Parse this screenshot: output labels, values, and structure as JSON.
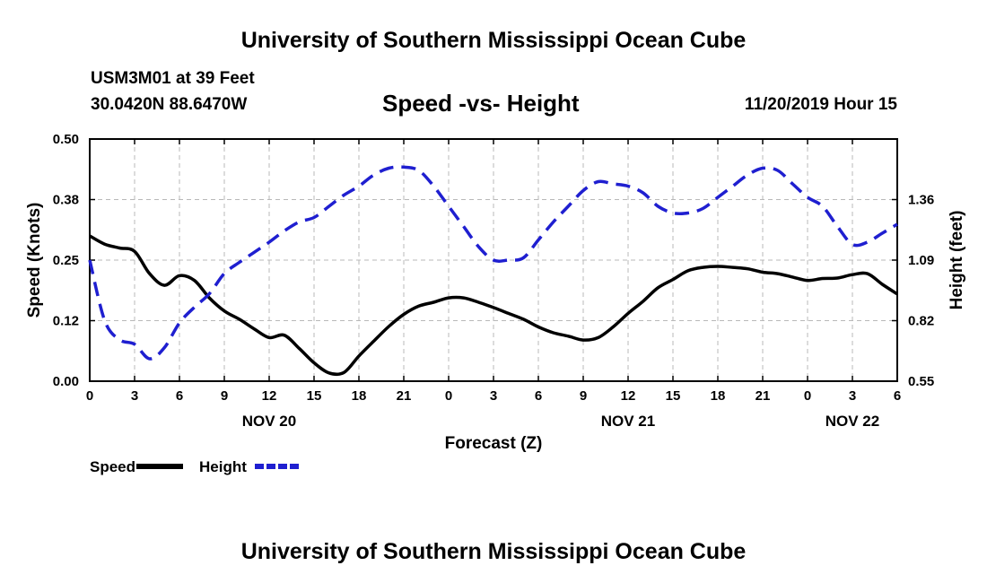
{
  "header": {
    "title": "University of Southern Mississippi Ocean Cube",
    "station": "USM3M01 at 39 Feet",
    "coordinates": "30.0420N 88.6470W",
    "subtitle": "Speed -vs- Height",
    "datetime": "11/20/2019 Hour 15"
  },
  "footer": {
    "title": "University of Southern Mississippi Ocean Cube"
  },
  "colors": {
    "speed": "#000000",
    "height": "#1f1fd0",
    "grid": "#b8b8b8"
  },
  "chart_data": {
    "type": "line",
    "title": "Speed -vs- Height",
    "xlabel": "Forecast (Z)",
    "ylabel": "Speed (Knots)",
    "y2label": "Height (feet)",
    "grid": true,
    "legend_position": "bottom-left",
    "x_range_hours": [
      0,
      54
    ],
    "x_tick_hours": [
      0,
      3,
      6,
      9,
      12,
      15,
      18,
      21,
      24,
      27,
      30,
      33,
      36,
      39,
      42,
      45,
      48,
      51,
      54
    ],
    "x_tick_labels": [
      "0",
      "3",
      "6",
      "9",
      "12",
      "15",
      "18",
      "21",
      "0",
      "3",
      "6",
      "9",
      "12",
      "15",
      "18",
      "21",
      "0",
      "3",
      "6"
    ],
    "date_labels": [
      {
        "hour": 12,
        "label": "NOV 20"
      },
      {
        "hour": 36,
        "label": "NOV 21"
      },
      {
        "hour": 51,
        "label": "NOV 22"
      }
    ],
    "y_left": {
      "range": [
        0.0,
        0.5
      ],
      "ticks": [
        0.0,
        0.125,
        0.25,
        0.375,
        0.5
      ],
      "tick_labels": [
        "0.00",
        "0.12",
        "0.25",
        "0.38",
        "0.50"
      ]
    },
    "y_right": {
      "range": [
        0.55,
        1.63
      ],
      "ticks": [
        0.55,
        0.82,
        1.09,
        1.36
      ],
      "tick_labels": [
        "0.55",
        "0.82",
        "1.09",
        "1.36"
      ]
    },
    "series": [
      {
        "name": "Speed",
        "axis": "left",
        "style": "solid",
        "x": [
          0,
          1,
          2,
          3,
          4,
          5,
          6,
          7,
          8,
          9,
          10,
          11,
          12,
          13,
          14,
          15,
          16,
          17,
          18,
          19,
          20,
          21,
          22,
          23,
          24,
          25,
          26,
          27,
          28,
          29,
          30,
          31,
          32,
          33,
          34,
          35,
          36,
          37,
          38,
          39,
          40,
          41,
          42,
          43,
          44,
          45,
          46,
          47,
          48,
          49,
          50,
          51,
          52,
          53,
          54
        ],
        "values": [
          0.3,
          0.283,
          0.275,
          0.268,
          0.222,
          0.198,
          0.218,
          0.208,
          0.172,
          0.145,
          0.128,
          0.108,
          0.09,
          0.095,
          0.068,
          0.038,
          0.017,
          0.018,
          0.052,
          0.083,
          0.113,
          0.138,
          0.155,
          0.163,
          0.172,
          0.172,
          0.163,
          0.152,
          0.14,
          0.128,
          0.112,
          0.1,
          0.093,
          0.085,
          0.09,
          0.112,
          0.14,
          0.165,
          0.193,
          0.21,
          0.228,
          0.235,
          0.237,
          0.235,
          0.232,
          0.225,
          0.222,
          0.215,
          0.208,
          0.212,
          0.213,
          0.22,
          0.222,
          0.2,
          0.18
        ]
      },
      {
        "name": "Height",
        "axis": "right",
        "style": "dashed",
        "x": [
          0,
          1,
          2,
          3,
          4,
          5,
          6,
          7,
          8,
          9,
          10,
          11,
          12,
          13,
          14,
          15,
          16,
          17,
          18,
          19,
          20,
          21,
          22,
          23,
          24,
          25,
          26,
          27,
          28,
          29,
          30,
          31,
          32,
          33,
          34,
          35,
          36,
          37,
          38,
          39,
          40,
          41,
          42,
          43,
          44,
          45,
          46,
          47,
          48,
          49,
          50,
          51,
          52,
          53,
          54
        ],
        "values": [
          1.09,
          0.82,
          0.735,
          0.715,
          0.65,
          0.7,
          0.81,
          0.88,
          0.94,
          1.03,
          1.08,
          1.125,
          1.17,
          1.22,
          1.26,
          1.28,
          1.33,
          1.38,
          1.42,
          1.47,
          1.5,
          1.505,
          1.49,
          1.42,
          1.33,
          1.24,
          1.15,
          1.09,
          1.09,
          1.1,
          1.18,
          1.26,
          1.33,
          1.4,
          1.44,
          1.43,
          1.42,
          1.39,
          1.33,
          1.3,
          1.3,
          1.32,
          1.37,
          1.42,
          1.47,
          1.5,
          1.49,
          1.43,
          1.37,
          1.33,
          1.24,
          1.16,
          1.17,
          1.21,
          1.25
        ]
      }
    ]
  }
}
